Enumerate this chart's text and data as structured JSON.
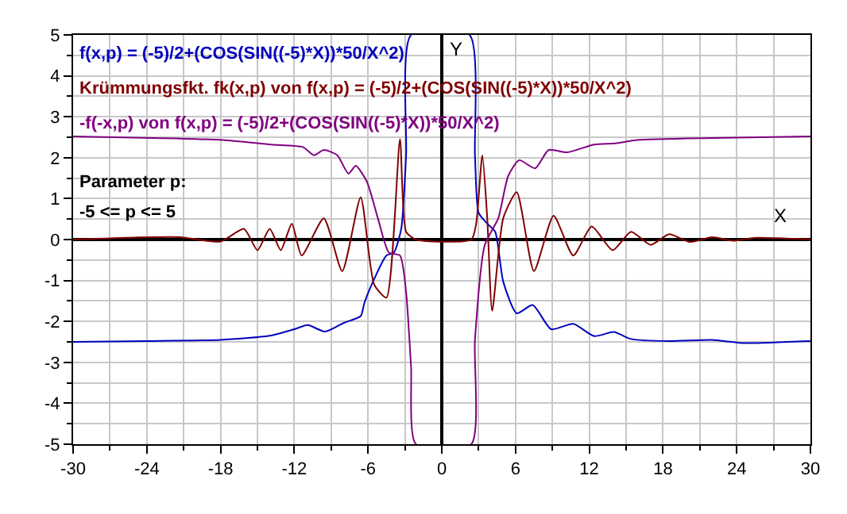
{
  "chart_data": {
    "type": "line",
    "xlabel": "X",
    "ylabel": "Y",
    "xlim": [
      -30,
      30
    ],
    "xticks": [
      -30,
      -24,
      -18,
      -12,
      -6,
      0,
      6,
      12,
      18,
      24,
      30
    ],
    "ylim": [
      -5,
      5
    ],
    "yticks": [
      -5,
      -4,
      -3,
      -2,
      -1,
      0,
      1,
      2,
      3,
      4,
      5
    ],
    "grid": true,
    "legend": false,
    "marker": "none",
    "line_style": "solid",
    "series": [
      {
        "name": "f(x,p) = (-5)/2+(COS(SIN((-5)*X))*50/X^2)",
        "color": "#0000c0",
        "x": [
          -30,
          -24,
          -18,
          -14,
          -12,
          -10.9,
          -9.5,
          -8,
          -6.6,
          -6.3,
          -5.4,
          -4.5,
          -3.9,
          -3.3,
          -2.9,
          -2.5,
          2.26,
          2.7,
          3.0,
          3.7,
          4.35,
          5.0,
          6.1,
          7.4,
          8.9,
          10.7,
          12.4,
          14.0,
          15.4,
          18.5,
          22,
          24.6,
          30
        ],
        "values": [
          -2.5,
          -2.48,
          -2.45,
          -2.35,
          -2.19,
          -2.09,
          -2.25,
          -2.04,
          -1.87,
          -1.55,
          -0.9,
          -0.39,
          -0.32,
          0.26,
          2.06,
          5,
          5,
          2.06,
          0.65,
          0.39,
          0.19,
          -1.03,
          -1.8,
          -1.6,
          -2.19,
          -2.06,
          -2.36,
          -2.26,
          -2.43,
          -2.48,
          -2.45,
          -2.53,
          -2.48
        ]
      },
      {
        "name": "Krümmungsfkt. fk(x,p) von f(x,p) = (-5)/2+(COS(SIN((-5)*X))*50/X^2)",
        "color": "#800000",
        "x": [
          -30,
          -25,
          -21.3,
          -18,
          -16.1,
          -15,
          -14,
          -13.1,
          -12.2,
          -11.4,
          -9.6,
          -8.1,
          -6.6,
          -5.5,
          -4.5,
          -3.4,
          -2.9,
          -2.1,
          2.4,
          2.8,
          3.3,
          3.7,
          4.1,
          5.0,
          6.1,
          7.5,
          9.1,
          10.7,
          12.2,
          13.9,
          15.4,
          17,
          18.5,
          20.2,
          22,
          23.7,
          25.4,
          30
        ],
        "values": [
          0,
          0.05,
          0.06,
          -0.05,
          0.26,
          -0.26,
          0.26,
          -0.26,
          0.39,
          -0.39,
          0.52,
          -0.77,
          1.03,
          -1.1,
          -1.42,
          2.45,
          0.19,
          0,
          0,
          0.39,
          2.06,
          0.52,
          -1.74,
          0.52,
          1.16,
          -0.77,
          0.58,
          -0.39,
          0.32,
          -0.26,
          0.19,
          -0.13,
          0.13,
          -0.06,
          0.06,
          -0.03,
          0.04,
          0
        ]
      },
      {
        "name": "-f(-x,p) von f(x,p) = (-5)/2+(COS(SIN((-5)*X))*50/X^2)",
        "color": "#800080",
        "x": [
          -30,
          -23.4,
          -17.8,
          -13.9,
          -11.3,
          -10.4,
          -9.6,
          -8.5,
          -7.6,
          -7.0,
          -6.1,
          -5.2,
          -4.3,
          -3.4,
          -2.9,
          -2.5,
          -2.1,
          2.4,
          2.7,
          3.5,
          4.6,
          5.4,
          6.3,
          7.6,
          8.7,
          10.2,
          12.4,
          14.1,
          15.9,
          22,
          30
        ],
        "values": [
          2.52,
          2.48,
          2.43,
          2.32,
          2.26,
          2.06,
          2.19,
          2.06,
          1.61,
          1.8,
          1.42,
          0.52,
          -0.32,
          -0.39,
          -1.29,
          -3.1,
          -5,
          -5,
          -2.45,
          -0.13,
          0.52,
          1.55,
          1.94,
          1.74,
          2.19,
          2.13,
          2.32,
          2.35,
          2.43,
          2.48,
          2.52
        ]
      }
    ],
    "annotations": [
      "Parameter p:",
      "-5 <= p <= 5"
    ]
  }
}
